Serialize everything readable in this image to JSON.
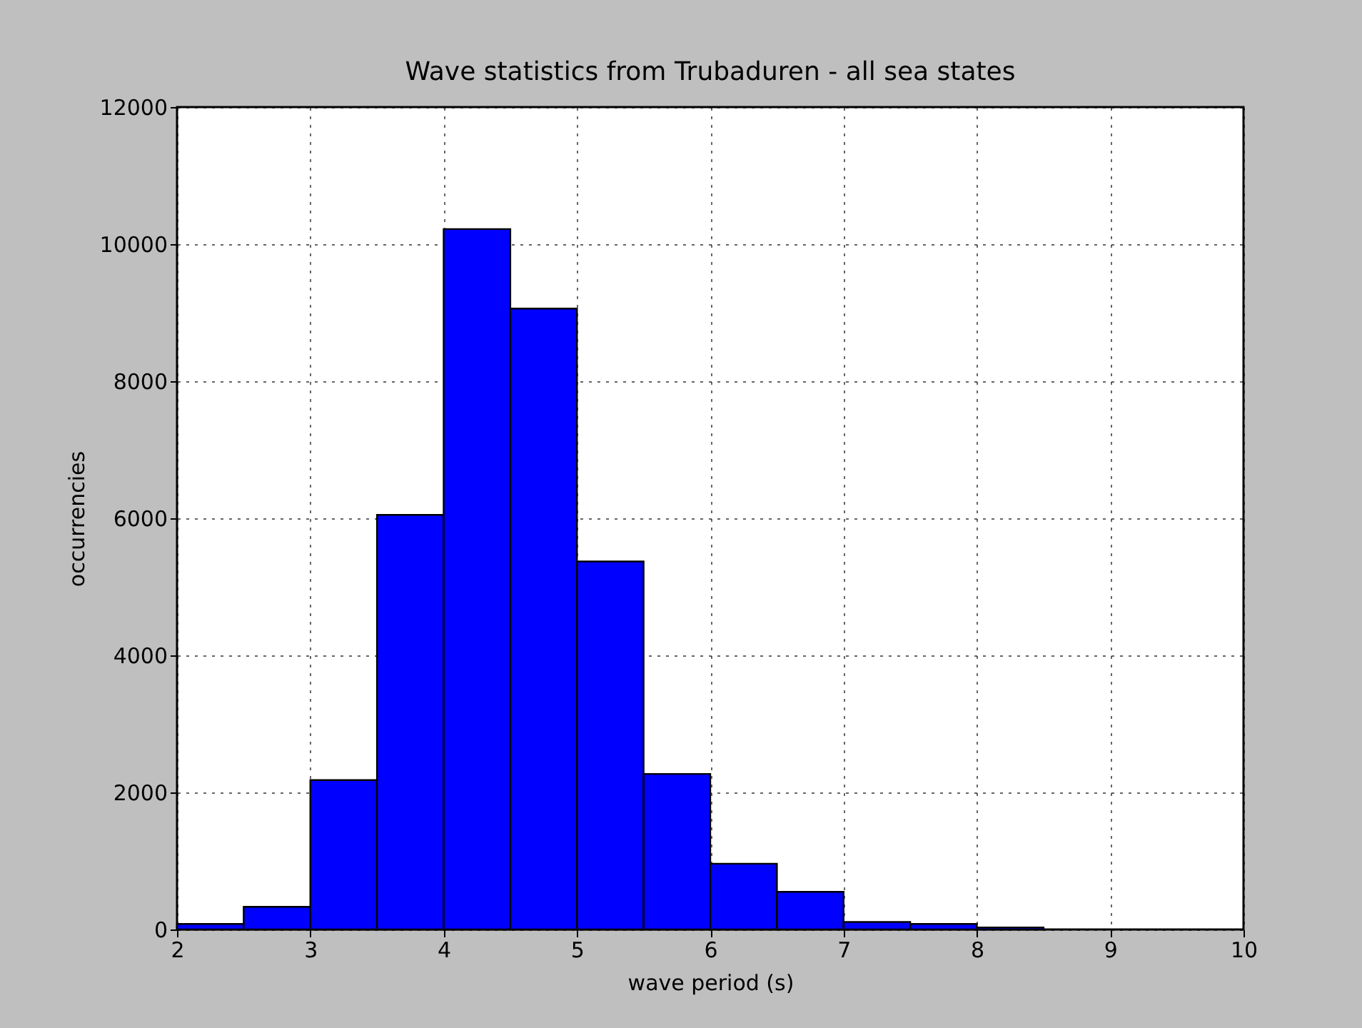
{
  "chart_data": {
    "type": "histogram",
    "title": "Wave statistics from Trubaduren - all sea states",
    "xlabel": "wave period (s)",
    "ylabel": "occurrencies",
    "bins": [
      2,
      2.5,
      3,
      3.5,
      4,
      4.5,
      5,
      5.5,
      6,
      6.5,
      7,
      7.5,
      8,
      8.5,
      9,
      9.5,
      10
    ],
    "values": [
      80,
      330,
      2180,
      6050,
      10220,
      9060,
      5370,
      2270,
      960,
      550,
      110,
      80,
      30,
      0,
      0,
      0
    ],
    "color": "#0000ff",
    "xlim": [
      2,
      10
    ],
    "xticks": [
      2,
      3,
      4,
      5,
      6,
      7,
      8,
      9,
      10
    ],
    "ylim": [
      0,
      12000
    ],
    "yticks": [
      0,
      2000,
      4000,
      6000,
      8000,
      10000,
      12000
    ],
    "grid": true
  }
}
